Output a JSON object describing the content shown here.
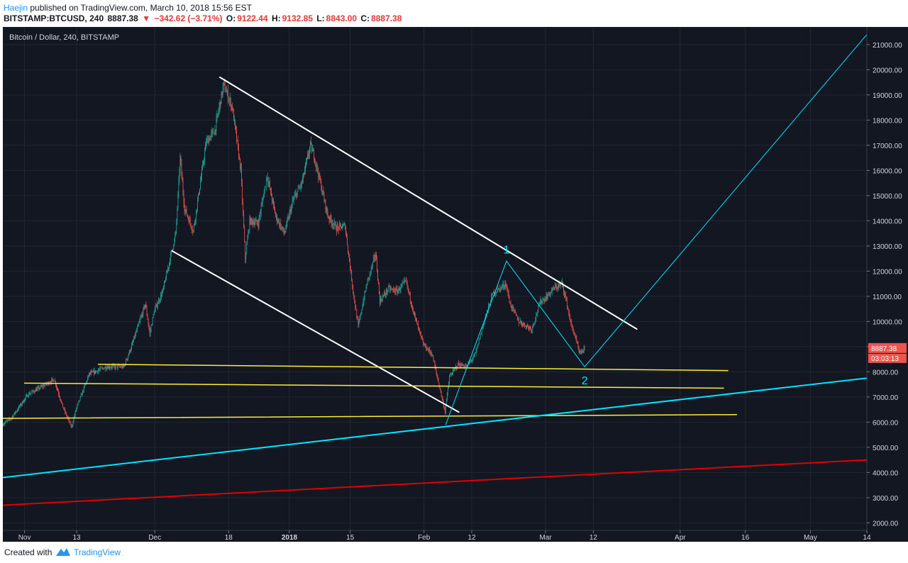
{
  "header": {
    "author": "Haejin",
    "published": " published on TradingView.com, March 10, 2018 15:56 EST",
    "symbol": "BITSTAMP:BTCUSD, 240",
    "last": "8887.38",
    "change": "−342.62 (−3.71%)",
    "o_label": "O:",
    "o_value": "9122.44",
    "h_label": "H:",
    "h_value": "9132.85",
    "l_label": "L:",
    "l_value": "8843.00",
    "c_label": "C:",
    "c_value": "8887.38"
  },
  "footer": {
    "created": "Created with",
    "brand": "TradingView"
  },
  "colors": {
    "background": "#131722",
    "grid": "#222736",
    "up": "#26a69a",
    "down": "#ef5350",
    "trend_white": "#ffffff",
    "support_yellow": "#ffeb3b",
    "cyan": "#00e5ff",
    "red": "#e00000"
  },
  "chart_data": {
    "type": "candlestick",
    "title": "Bitcoin / Dollar, 240, BITSTAMP",
    "x_range": [
      "2017-10-27",
      "2018-05-14"
    ],
    "ylim": [
      1700,
      21700
    ],
    "y_ticks": [
      "2000.00",
      "3000.00",
      "4000.00",
      "5000.00",
      "6000.00",
      "7000.00",
      "8000.00",
      "9000.00",
      "10000.00",
      "11000.00",
      "12000.00",
      "13000.00",
      "14000.00",
      "15000.00",
      "16000.00",
      "17000.00",
      "18000.00",
      "19000.00",
      "20000.00",
      "21000.00"
    ],
    "x_ticks": [
      {
        "date": "2017-11-01",
        "label": "Nov"
      },
      {
        "date": "2017-11-13",
        "label": "13"
      },
      {
        "date": "2017-12-01",
        "label": "Dec"
      },
      {
        "date": "2017-12-18",
        "label": "18"
      },
      {
        "date": "2018-01-01",
        "label": "2018"
      },
      {
        "date": "2018-01-15",
        "label": "15"
      },
      {
        "date": "2018-02-01",
        "label": "Feb"
      },
      {
        "date": "2018-02-12",
        "label": "12"
      },
      {
        "date": "2018-03-01",
        "label": "Mar"
      },
      {
        "date": "2018-03-12",
        "label": "12"
      },
      {
        "date": "2018-04-01",
        "label": "Apr"
      },
      {
        "date": "2018-04-16",
        "label": "16"
      },
      {
        "date": "2018-05-01",
        "label": "May"
      },
      {
        "date": "2018-05-14",
        "label": "14"
      }
    ],
    "price_path": [
      [
        "2017-10-27",
        5900
      ],
      [
        "2017-10-29",
        6150
      ],
      [
        "2017-11-02",
        7100
      ],
      [
        "2017-11-05",
        7400
      ],
      [
        "2017-11-08",
        7700
      ],
      [
        "2017-11-10",
        6600
      ],
      [
        "2017-11-12",
        5800
      ],
      [
        "2017-11-13",
        6500
      ],
      [
        "2017-11-16",
        7900
      ],
      [
        "2017-11-20",
        8200
      ],
      [
        "2017-11-24",
        8200
      ],
      [
        "2017-11-26",
        9100
      ],
      [
        "2017-11-29",
        10700
      ],
      [
        "2017-11-30",
        9500
      ],
      [
        "2017-12-01",
        10400
      ],
      [
        "2017-12-03",
        11200
      ],
      [
        "2017-12-06",
        13500
      ],
      [
        "2017-12-07",
        16500
      ],
      [
        "2017-12-08",
        14500
      ],
      [
        "2017-12-10",
        13600
      ],
      [
        "2017-12-13",
        17100
      ],
      [
        "2017-12-15",
        17600
      ],
      [
        "2017-12-17",
        19400
      ],
      [
        "2017-12-19",
        18500
      ],
      [
        "2017-12-21",
        16000
      ],
      [
        "2017-12-22",
        12500
      ],
      [
        "2017-12-23",
        14000
      ],
      [
        "2017-12-25",
        13900
      ],
      [
        "2017-12-27",
        15800
      ],
      [
        "2017-12-29",
        14200
      ],
      [
        "2017-12-31",
        13500
      ],
      [
        "2018-01-02",
        14800
      ],
      [
        "2018-01-04",
        15500
      ],
      [
        "2018-01-06",
        17000
      ],
      [
        "2018-01-07",
        16500
      ],
      [
        "2018-01-10",
        14200
      ],
      [
        "2018-01-12",
        13700
      ],
      [
        "2018-01-14",
        13800
      ],
      [
        "2018-01-16",
        11000
      ],
      [
        "2018-01-17",
        9800
      ],
      [
        "2018-01-19",
        11500
      ],
      [
        "2018-01-21",
        12700
      ],
      [
        "2018-01-22",
        10800
      ],
      [
        "2018-01-24",
        11300
      ],
      [
        "2018-01-26",
        11200
      ],
      [
        "2018-01-28",
        11600
      ],
      [
        "2018-01-30",
        10200
      ],
      [
        "2018-02-01",
        9100
      ],
      [
        "2018-02-03",
        8700
      ],
      [
        "2018-02-05",
        7200
      ],
      [
        "2018-02-06",
        6400
      ],
      [
        "2018-02-07",
        7800
      ],
      [
        "2018-02-09",
        8300
      ],
      [
        "2018-02-11",
        8200
      ],
      [
        "2018-02-13",
        8700
      ],
      [
        "2018-02-15",
        10000
      ],
      [
        "2018-02-17",
        11100
      ],
      [
        "2018-02-20",
        11500
      ],
      [
        "2018-02-21",
        10700
      ],
      [
        "2018-02-23",
        10000
      ],
      [
        "2018-02-26",
        9700
      ],
      [
        "2018-02-28",
        10800
      ],
      [
        "2018-03-01",
        10900
      ],
      [
        "2018-03-03",
        11300
      ],
      [
        "2018-03-05",
        11500
      ],
      [
        "2018-03-06",
        10800
      ],
      [
        "2018-03-07",
        9900
      ],
      [
        "2018-03-08",
        9400
      ],
      [
        "2018-03-09",
        8700
      ],
      [
        "2018-03-10",
        8887
      ]
    ],
    "annotations": {
      "lines": [
        {
          "color": "trend_white",
          "width": 2,
          "from": [
            "2017-12-16",
            19700
          ],
          "to": [
            "2018-03-22",
            9700
          ]
        },
        {
          "color": "trend_white",
          "width": 2,
          "from": [
            "2017-12-05",
            12800
          ],
          "to": [
            "2018-02-09",
            6400
          ]
        },
        {
          "color": "support_yellow",
          "width": 1.5,
          "from": [
            "2017-11-18",
            8300
          ],
          "to": [
            "2018-04-12",
            8050
          ]
        },
        {
          "color": "support_yellow",
          "width": 1.5,
          "from": [
            "2017-11-01",
            7550
          ],
          "to": [
            "2018-04-11",
            7350
          ]
        },
        {
          "color": "support_yellow",
          "width": 1.5,
          "from": [
            "2017-10-27",
            6150
          ],
          "to": [
            "2018-04-14",
            6300
          ]
        },
        {
          "color": "cyan",
          "width": 2,
          "from": [
            "2017-10-27",
            3800
          ],
          "to": [
            "2018-05-14",
            7750
          ]
        },
        {
          "color": "red",
          "width": 2,
          "from": [
            "2017-10-27",
            2700
          ],
          "to": [
            "2018-05-14",
            4500
          ]
        },
        {
          "color": "cyan",
          "width": 1,
          "from": [
            "2018-02-06",
            5900
          ],
          "to": [
            "2018-02-20",
            12400
          ]
        },
        {
          "color": "cyan",
          "width": 1,
          "from": [
            "2018-02-20",
            12400
          ],
          "to": [
            "2018-03-10",
            8200
          ]
        },
        {
          "color": "cyan",
          "width": 1,
          "from": [
            "2018-03-10",
            8200
          ],
          "to": [
            "2018-05-14",
            21400
          ]
        }
      ],
      "labels": [
        {
          "text": "1",
          "date": "2018-02-20",
          "price": 12700,
          "color": "cyan"
        },
        {
          "text": "2",
          "date": "2018-03-10",
          "price": 7500,
          "color": "cyan"
        }
      ]
    },
    "price_label": {
      "value": "8887.38",
      "countdown": "03:03:13",
      "price": 8887.38,
      "color": "#ef5350"
    }
  }
}
